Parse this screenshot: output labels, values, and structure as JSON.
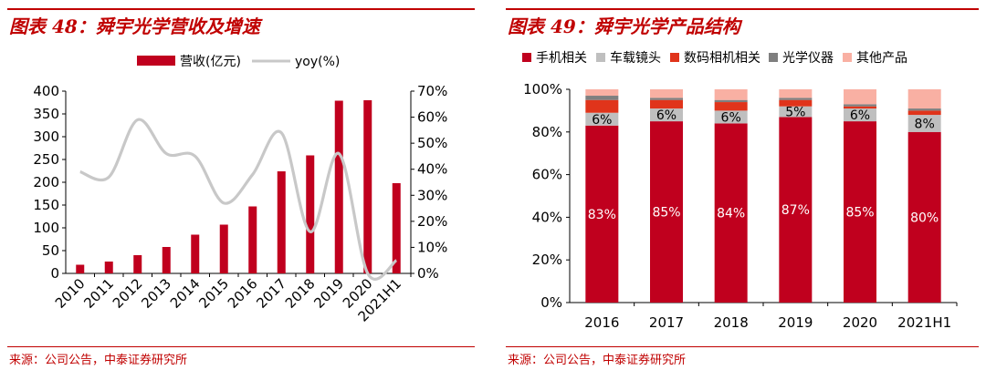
{
  "colors": {
    "accent": "#c00000",
    "bar_red": "#c0001e",
    "line_gray": "#c8c8c8"
  },
  "footer": {
    "source": "来源：公司公告，中泰证券研究所"
  },
  "chart_data": [
    {
      "type": "bar",
      "title": "图表 48：舜宇光学营收及增速",
      "categories": [
        "2010",
        "2011",
        "2012",
        "2013",
        "2014",
        "2015",
        "2016",
        "2017",
        "2018",
        "2019",
        "2020",
        "2021H1"
      ],
      "series": [
        {
          "name": "营收(亿元)",
          "type": "bar",
          "axis": "left",
          "values": [
            19,
            26,
            40,
            58,
            85,
            107,
            147,
            224,
            259,
            379,
            380,
            198
          ]
        },
        {
          "name": "yoy(%)",
          "type": "line",
          "axis": "right",
          "values": [
            39,
            37,
            59,
            46,
            45,
            27,
            38,
            54,
            16,
            46,
            0,
            5
          ]
        }
      ],
      "ylim": [
        0,
        400
      ],
      "y_ticks": [
        "0",
        "50",
        "100",
        "150",
        "200",
        "250",
        "300",
        "350",
        "400"
      ],
      "y2lim": [
        0,
        70
      ],
      "y2_ticks": [
        "0%",
        "10%",
        "20%",
        "30%",
        "40%",
        "50%",
        "60%",
        "70%"
      ],
      "legend": "top-center",
      "grid": false
    },
    {
      "type": "bar",
      "stacked": true,
      "title": "图表 49：舜宇光学产品结构",
      "categories": [
        "2016",
        "2017",
        "2018",
        "2019",
        "2020",
        "2021H1"
      ],
      "series": [
        {
          "name": "手机相关",
          "color": "#c0001e",
          "values": [
            83,
            85,
            84,
            87,
            85,
            80
          ]
        },
        {
          "name": "车载镜头",
          "color": "#bfbfbf",
          "values": [
            6,
            6,
            6,
            5,
            6,
            8
          ]
        },
        {
          "name": "数码相机相关",
          "color": "#e0341b",
          "values": [
            6,
            4,
            4,
            3,
            1,
            2
          ]
        },
        {
          "name": "光学仪器",
          "color": "#7f7f7f",
          "values": [
            2,
            1,
            1,
            1,
            1,
            1
          ]
        },
        {
          "name": "其他产品",
          "color": "#f9b0a3",
          "values": [
            3,
            4,
            5,
            4,
            7,
            9
          ]
        }
      ],
      "data_labels": {
        "手机相关": [
          "83%",
          "85%",
          "84%",
          "87%",
          "85%",
          "80%"
        ],
        "车载镜头": [
          "6%",
          "6%",
          "6%",
          "5%",
          "6%",
          "8%"
        ]
      },
      "ylim": [
        0,
        100
      ],
      "y_ticks": [
        "0%",
        "20%",
        "40%",
        "60%",
        "80%",
        "100%"
      ],
      "legend": "top",
      "grid": false
    }
  ]
}
